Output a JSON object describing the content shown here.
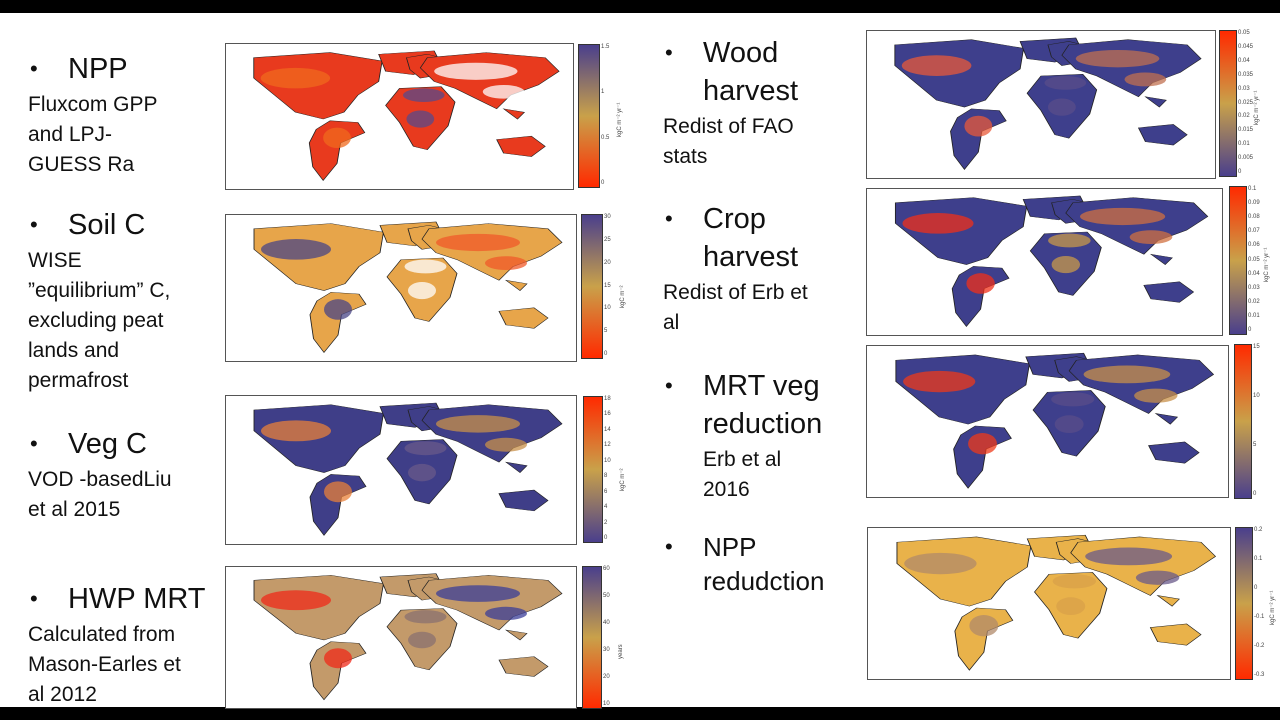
{
  "left_items": [
    {
      "heading": "NPP",
      "description": [
        "Fluxcom GPP",
        "and LPJ-",
        "GUESS Ra"
      ]
    },
    {
      "heading": "Soil C",
      "description": [
        "WISE",
        "”equilibrium” C,",
        "excluding peat",
        "lands and",
        "permafrost"
      ]
    },
    {
      "heading": "Veg C",
      "description": [
        "VOD -basedLiu",
        "et al 2015"
      ]
    },
    {
      "heading": "HWP MRT",
      "description": [
        "Calculated from",
        "Mason-Earles et",
        "al 2012"
      ]
    }
  ],
  "right_items": [
    {
      "heading": [
        "Wood",
        "harvest"
      ],
      "description": [
        "Redist of FAO",
        "stats"
      ]
    },
    {
      "heading": [
        "Crop",
        "harvest"
      ],
      "description": [
        "Redist of Erb et",
        "al"
      ]
    },
    {
      "heading": [
        "MRT veg",
        "reduction"
      ],
      "description": [
        "Erb et al",
        "2016"
      ]
    },
    {
      "heading": [
        "NPP",
        "redudction"
      ],
      "description": []
    }
  ],
  "bullet_char": "•",
  "maps": [
    {
      "id": "npp",
      "unit": "kgC m⁻² yr⁻¹",
      "ticks": [
        "1.5",
        "1",
        "0.5",
        "0"
      ],
      "ocean": "#ffffff",
      "land": "#e83a1e",
      "patches": [
        "#f06a1e",
        "#ffffff",
        "#5a4a8a"
      ],
      "cbar": [
        "#4a3f8c",
        "#c9a14a",
        "#ff2a00"
      ]
    },
    {
      "id": "soilc",
      "unit": "kgC m⁻²",
      "ticks": [
        "30",
        "25",
        "20",
        "15",
        "10",
        "5",
        "0"
      ],
      "ocean": "#ffffff",
      "land": "#e7a54a",
      "patches": [
        "#4a4585",
        "#f05a2a",
        "#ffffff"
      ],
      "cbar": [
        "#4a3f8c",
        "#c9a14a",
        "#ff2a00"
      ]
    },
    {
      "id": "vegc",
      "unit": "kgC m⁻²",
      "ticks": [
        "18",
        "16",
        "14",
        "12",
        "10",
        "8",
        "6",
        "4",
        "2",
        "0"
      ],
      "ocean": "#ffffff",
      "land": "#3f3e88",
      "patches": [
        "#e8803a",
        "#c8904a",
        "#6a5a8a"
      ],
      "cbar": [
        "#ff2a00",
        "#c9a14a",
        "#4a3f8c"
      ]
    },
    {
      "id": "hwp",
      "unit": "years",
      "ticks": [
        "60",
        "50",
        "40",
        "30",
        "20",
        "10"
      ],
      "ocean": "#ffffff",
      "land": "#c39a6a",
      "patches": [
        "#ef2a1a",
        "#3b3e98",
        "#8a7070"
      ],
      "cbar": [
        "#4a3f8c",
        "#c9a14a",
        "#ff2a00"
      ]
    },
    {
      "id": "wood",
      "unit": "kgC m⁻² yr⁻¹",
      "ticks": [
        "0.05",
        "0.045",
        "0.04",
        "0.035",
        "0.03",
        "0.025",
        "0.02",
        "0.015",
        "0.01",
        "0.005",
        "0"
      ],
      "ocean": "#ffffff",
      "land": "#3e3f8c",
      "patches": [
        "#e85a3a",
        "#c07050",
        "#5a4e8a"
      ],
      "cbar": [
        "#ff2a00",
        "#c9a14a",
        "#4a3f8c"
      ]
    },
    {
      "id": "crop",
      "unit": "kgC m⁻² yr⁻¹",
      "ticks": [
        "0.1",
        "0.09",
        "0.08",
        "0.07",
        "0.06",
        "0.05",
        "0.04",
        "0.03",
        "0.02",
        "0.01",
        "0"
      ],
      "ocean": "#ffffff",
      "land": "#3e3f8c",
      "patches": [
        "#f0301a",
        "#d07040",
        "#c89a4a"
      ],
      "cbar": [
        "#ff2a00",
        "#c9a14a",
        "#4a3f8c"
      ]
    },
    {
      "id": "mrt",
      "unit": "",
      "ticks": [
        "15",
        "10",
        "5",
        "0"
      ],
      "ocean": "#ffffff",
      "land": "#3e3f8c",
      "patches": [
        "#ef3a1a",
        "#c8904a",
        "#5a4e8a"
      ],
      "cbar": [
        "#ff2a00",
        "#c9a14a",
        "#4a3f8c"
      ]
    },
    {
      "id": "nppred",
      "unit": "kgC m⁻² yr⁻¹",
      "ticks": [
        "0.2",
        "0.1",
        "0",
        "-0.1",
        "-0.2",
        "-0.3"
      ],
      "ocean": "#ffffff",
      "land": "#e9b24a",
      "patches": [
        "#b08a6a",
        "#6a5a8a",
        "#d8a04a"
      ],
      "cbar": [
        "#4a3f8c",
        "#c9a14a",
        "#ff2a00"
      ]
    }
  ]
}
